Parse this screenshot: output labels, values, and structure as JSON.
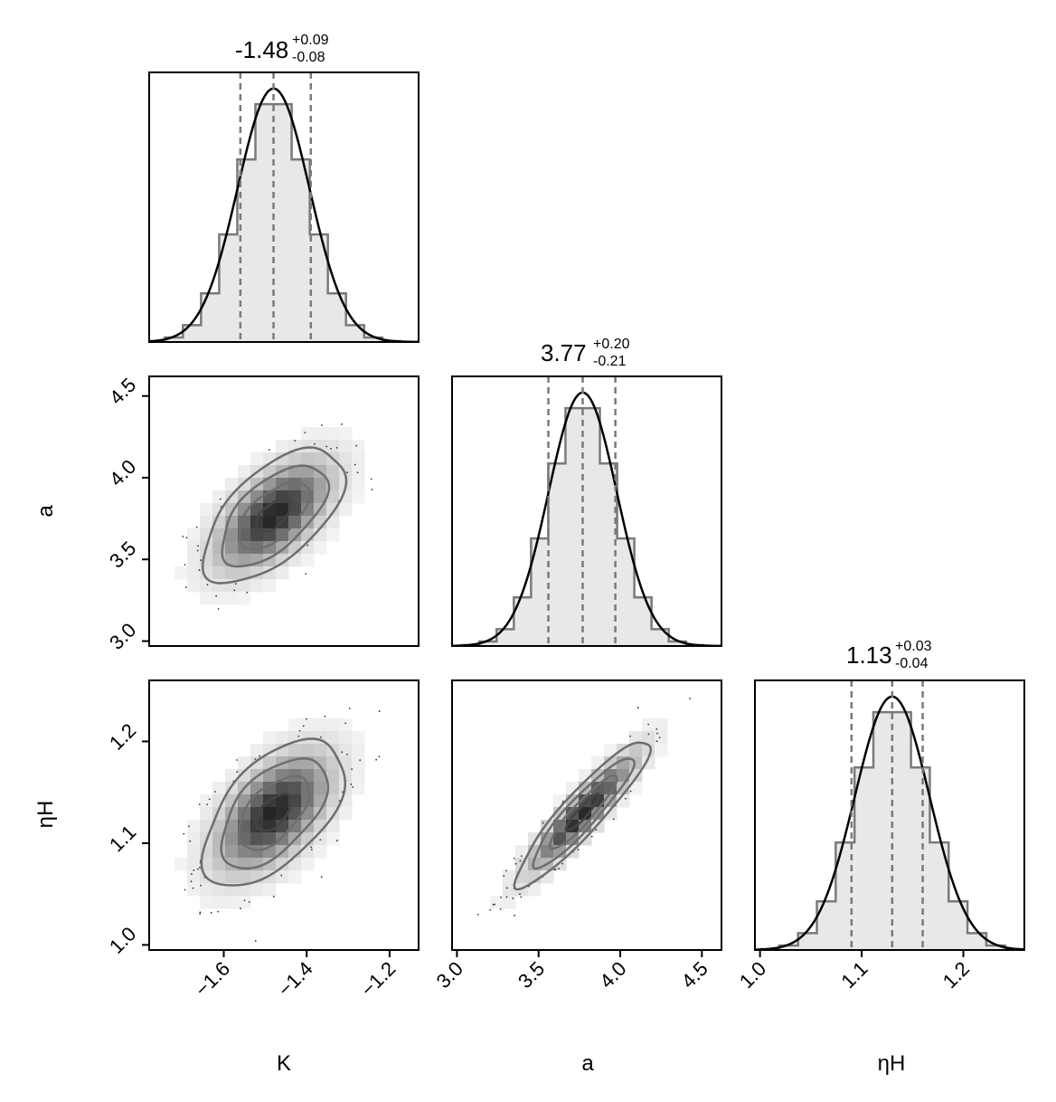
{
  "chart_data": {
    "type": "corner",
    "parameters": [
      {
        "label": "K",
        "median": -1.48,
        "plus": "+0.09",
        "minus": "-0.08",
        "title_value": "-1.48",
        "q16": -1.56,
        "q50": -1.48,
        "q84": -1.39,
        "axis_range": [
          -1.78,
          -1.13
        ],
        "ticks": [
          -1.6,
          -1.4,
          -1.2
        ],
        "tick_labels": [
          "−1.6",
          "−1.4",
          "−1.2"
        ],
        "sd": 0.085,
        "skew": 0.0
      },
      {
        "label": "a",
        "median": 3.77,
        "plus": "+0.20",
        "minus": "-0.21",
        "title_value": "3.77",
        "q16": 3.56,
        "q50": 3.77,
        "q84": 3.97,
        "axis_range": [
          2.97,
          4.62
        ],
        "ticks": [
          3.0,
          3.5,
          4.0,
          4.5
        ],
        "tick_labels": [
          "3.0",
          "3.5",
          "4.0",
          "4.5"
        ],
        "sd": 0.205,
        "skew": 0.0
      },
      {
        "label": "ηH",
        "median": 1.13,
        "plus": "+0.03",
        "minus": "-0.04",
        "title_value": "1.13",
        "q16": 1.09,
        "q50": 1.13,
        "q84": 1.16,
        "axis_range": [
          0.995,
          1.26
        ],
        "ticks": [
          1.0,
          1.1,
          1.2
        ],
        "tick_labels": [
          "1.0",
          "1.1",
          "1.2"
        ],
        "sd": 0.036,
        "skew": 0.0
      }
    ],
    "correlations": {
      "0-1": 0.6,
      "0-2": 0.55,
      "1-2": 0.92
    },
    "histogram_bins": 14,
    "contour_levels_sigma": [
      0.5,
      1.0,
      1.5,
      2.0
    ],
    "colors": {
      "hist_fill": "#e8e8e8",
      "hist_edge": "#7a7a7a",
      "kde_line": "#000000",
      "quantile_line": "#7a7a7a",
      "contour": "#6e6e6e",
      "density_dark": "#1a1a1a"
    }
  }
}
